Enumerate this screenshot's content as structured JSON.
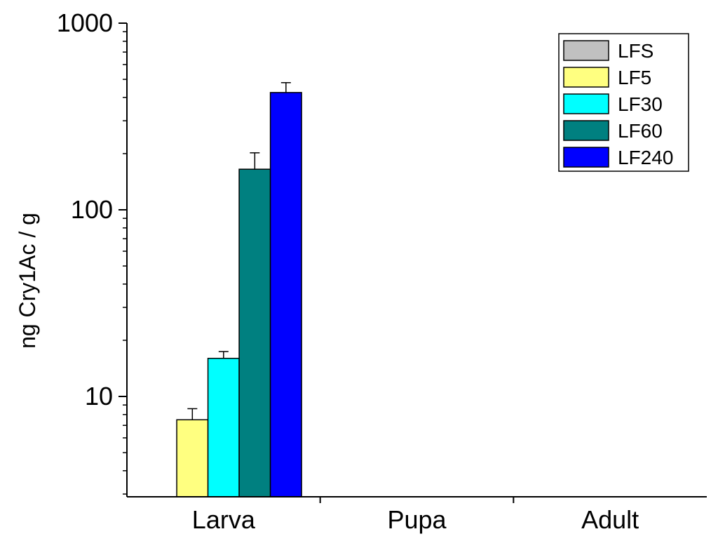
{
  "chart_data": {
    "type": "bar",
    "title": "",
    "xlabel": "",
    "ylabel": "ng Cry1Ac / g",
    "yscale": "log",
    "ylim": [
      2.9,
      1000
    ],
    "yticks": [
      {
        "value": 10,
        "label": "10"
      },
      {
        "value": 100,
        "label": "100"
      },
      {
        "value": 1000,
        "label": "1000"
      }
    ],
    "categories": [
      "Larva",
      "Pupa",
      "Adult"
    ],
    "series": [
      {
        "name": "LFS",
        "color": "#c0c0c0",
        "values": [
          null,
          null,
          null
        ],
        "errors": [
          null,
          null,
          null
        ]
      },
      {
        "name": "LF5",
        "color": "#ffff80",
        "values": [
          7.5,
          null,
          null
        ],
        "errors": [
          1.1,
          null,
          null
        ]
      },
      {
        "name": "LF30",
        "color": "#00ffff",
        "values": [
          16,
          null,
          null
        ],
        "errors": [
          1.4,
          null,
          null
        ]
      },
      {
        "name": "LF60",
        "color": "#008080",
        "values": [
          165,
          null,
          null
        ],
        "errors": [
          37,
          null,
          null
        ]
      },
      {
        "name": "LF240",
        "color": "#0000ff",
        "values": [
          425,
          null,
          null
        ],
        "errors": [
          55,
          null,
          null
        ]
      }
    ],
    "grid": false,
    "legend_position": "top-right"
  }
}
